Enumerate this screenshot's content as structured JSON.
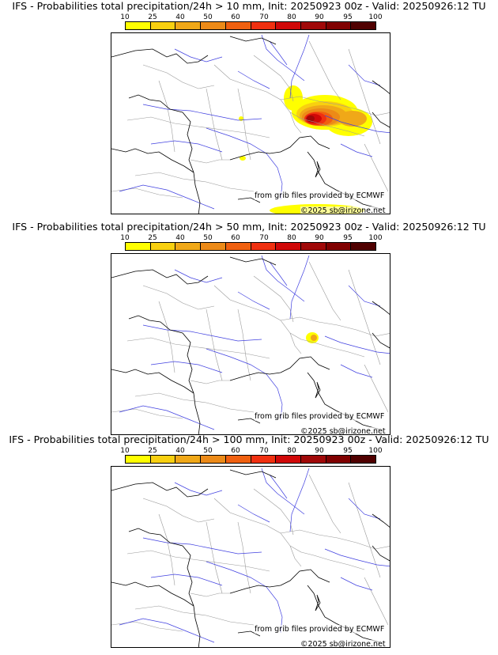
{
  "colors": {
    "scale": [
      "#ffff00",
      "#f8d010",
      "#f0a818",
      "#ec8a18",
      "#f06010",
      "#f03010",
      "#d00808",
      "#a00808",
      "#800000",
      "#500000"
    ],
    "river": "#4040e0",
    "border": "#999999",
    "coast": "#000000"
  },
  "colorbar_labels": [
    "10",
    "25",
    "40",
    "50",
    "60",
    "70",
    "80",
    "90",
    "95",
    "100"
  ],
  "panels": [
    {
      "title": "IFS - Probabilities total precipitation/24h > 10 mm, Init: 20250923 00z - Valid: 20250926:12 TU",
      "credit_source": "from grib files provided by ECMWF",
      "credit_copyright": "©2025 sb@irizone.net",
      "precip_level": "high"
    },
    {
      "title": "IFS - Probabilities total precipitation/24h > 50 mm, Init: 20250923 00z - Valid: 20250926:12 TU",
      "credit_source": "from grib files provided by ECMWF",
      "credit_copyright": "©2025 sb@irizone.net",
      "precip_level": "low"
    },
    {
      "title": "IFS - Probabilities total precipitation/24h > 100 mm, Init: 20250923 00z - Valid: 20250926:12 TU",
      "credit_source": "from grib files provided by ECMWF",
      "credit_copyright": "©2025 sb@irizone.net",
      "precip_level": "none"
    }
  ]
}
